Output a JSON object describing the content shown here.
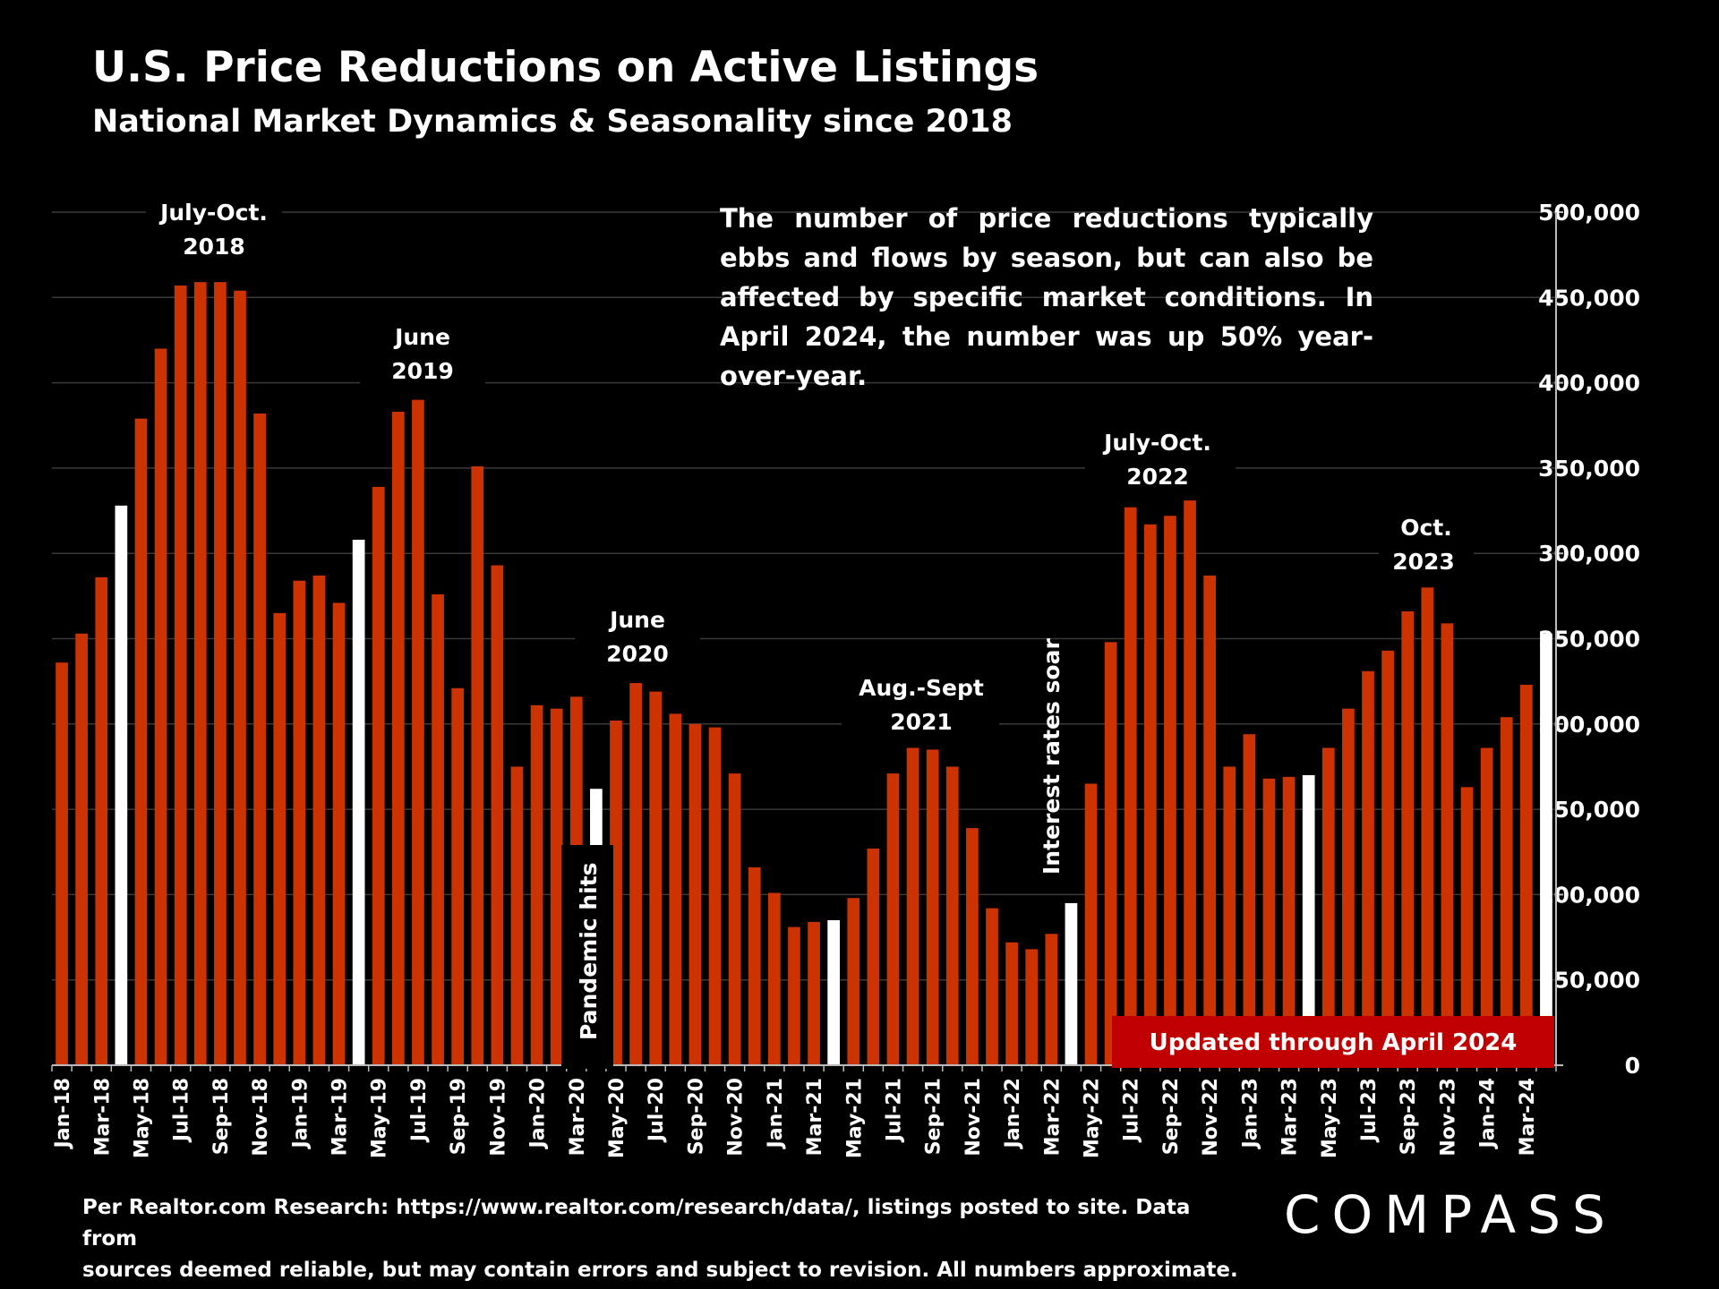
{
  "title": "U.S. Price Reductions on Active Listings",
  "subtitle": "National Market Dynamics & Seasonality since 2018",
  "note": "The number of price reductions typically ebbs and flows by season, but can also be affected by specific market conditions. In April 2024, the number was up 50% year-over-year.",
  "source_line1": "Per Realtor.com Research:  https://www.realtor.com/research/data/, listings posted to site. Data from",
  "source_line2": "sources deemed reliable, but may contain errors and subject to revision. All numbers approximate.",
  "logo": "COMPASS",
  "colors": {
    "bar": "#cc3300",
    "highlight": "#ffffff",
    "banner": "#c00000",
    "grid": "#3a3a3a",
    "background": "#000000"
  },
  "chart_data": {
    "type": "bar",
    "ylim": [
      0,
      500000
    ],
    "yticks": [
      0,
      50000,
      100000,
      150000,
      200000,
      250000,
      300000,
      350000,
      400000,
      450000,
      500000
    ],
    "ytick_labels": [
      "0",
      "50,000",
      "100,000",
      "150,000",
      "200,000",
      "250,000",
      "300,000",
      "350,000",
      "400,000",
      "450,000",
      "500,000"
    ],
    "grid": true,
    "y_axis_position": "right",
    "x_tick_labels": [
      "Jan-18",
      "Mar-18",
      "May-18",
      "Jul-18",
      "Sep-18",
      "Nov-18",
      "Jan-19",
      "Mar-19",
      "May-19",
      "Jul-19",
      "Sep-19",
      "Nov-19",
      "Jan-20",
      "Mar-20",
      "May-20",
      "Jul-20",
      "Sep-20",
      "Nov-20",
      "Jan-21",
      "Mar-21",
      "May-21",
      "Jul-21",
      "Sep-21",
      "Nov-21",
      "Jan-22",
      "Mar-22",
      "May-22",
      "Jul-22",
      "Sep-22",
      "Nov-22",
      "Jan-23",
      "Mar-23",
      "May-23",
      "Jul-23",
      "Sep-23",
      "Nov-23",
      "Jan-24",
      "Mar-24"
    ],
    "values": [
      236000,
      253000,
      286000,
      328000,
      379000,
      420000,
      457000,
      459000,
      459000,
      454000,
      382000,
      265000,
      284000,
      287000,
      271000,
      308000,
      339000,
      383000,
      390000,
      276000,
      221000,
      351000,
      293000,
      175000,
      211000,
      209000,
      216000,
      162000,
      202000,
      224000,
      219000,
      206000,
      200000,
      198000,
      171000,
      116000,
      101000,
      81000,
      84000,
      85000,
      98000,
      127000,
      171000,
      186000,
      185000,
      175000,
      139000,
      92000,
      72000,
      68000,
      77000,
      95000,
      165000,
      248000,
      327000,
      317000,
      322000,
      331000,
      287000,
      175000,
      194000,
      168000,
      169000,
      170000,
      186000,
      209000,
      231000,
      243000,
      266000,
      280000,
      259000,
      163000,
      186000,
      204000,
      223000,
      253000
    ],
    "highlighted_indices": [
      3,
      15,
      27,
      39,
      51,
      63,
      75
    ],
    "annotations": [
      {
        "text_lines": [
          "July-Oct.",
          "2018"
        ]
      },
      {
        "text_lines": [
          "June",
          "2019"
        ]
      },
      {
        "text_lines": [
          "June",
          "2020"
        ]
      },
      {
        "text_lines": [
          "Aug.-Sept",
          "2021"
        ]
      },
      {
        "text_lines": [
          "July-Oct.",
          "2022"
        ]
      },
      {
        "text_lines": [
          "Oct.",
          "2023"
        ]
      }
    ],
    "vertical_labels": [
      "Pandemic hits",
      "Interest rates soar"
    ],
    "banner": "Updated through April 2024"
  }
}
